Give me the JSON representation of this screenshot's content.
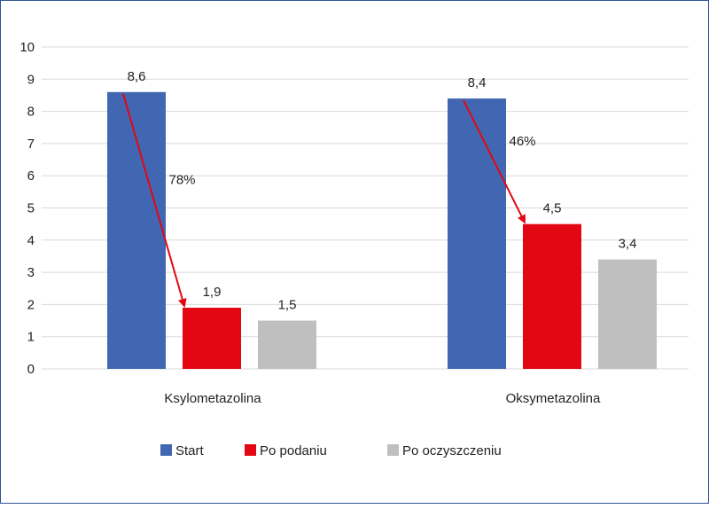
{
  "chart_data": {
    "type": "bar",
    "title": "",
    "xlabel": "",
    "ylabel": "",
    "ylim": [
      0,
      10
    ],
    "yticks": [
      0,
      1,
      2,
      3,
      4,
      5,
      6,
      7,
      8,
      9,
      10
    ],
    "grid": true,
    "legend_position": "bottom",
    "categories": [
      "Ksylometazolina",
      "Oksymetazolina"
    ],
    "series": [
      {
        "name": "Start",
        "color": "#4267b2",
        "values": [
          8.6,
          8.4
        ],
        "labels": [
          "8,6",
          "8,4"
        ]
      },
      {
        "name": "Po podaniu",
        "color": "#e30613",
        "values": [
          1.9,
          4.5
        ],
        "labels": [
          "1,9",
          "4,5"
        ]
      },
      {
        "name": "Po oczyszczeniu",
        "color": "#bfbfbf",
        "values": [
          1.5,
          3.4
        ],
        "labels": [
          "1,5",
          "3,4"
        ]
      }
    ],
    "annotations": [
      {
        "text": "78%",
        "category": "Ksylometazolina",
        "from_series": "Start",
        "to_series": "Po podaniu",
        "arrow_color": "#e30613"
      },
      {
        "text": "46%",
        "category": "Oksymetazolina",
        "from_series": "Start",
        "to_series": "Po podaniu",
        "arrow_color": "#e30613"
      }
    ]
  }
}
